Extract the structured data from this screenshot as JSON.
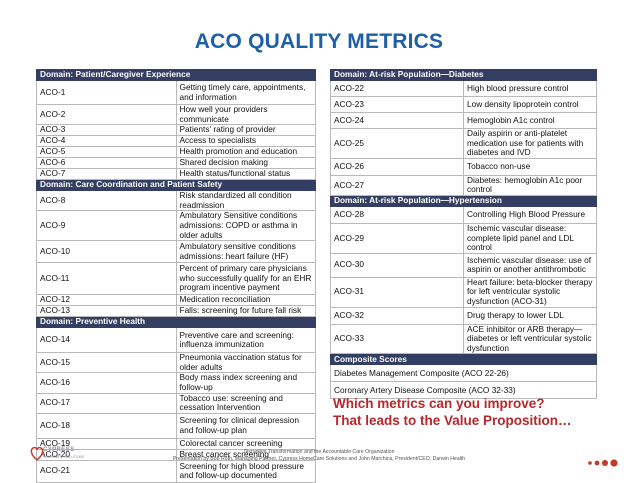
{
  "title": "ACO QUALITY METRICS",
  "left_rows": [
    {
      "type": "domain",
      "text": "Domain: Patient/Caregiver Experience"
    },
    {
      "type": "row",
      "id": "ACO-1",
      "text": "Getting timely care, appointments, and information",
      "h": 24
    },
    {
      "type": "row",
      "id": "ACO-2",
      "text": "How well your providers communicate",
      "h": 12
    },
    {
      "type": "row",
      "id": "ACO-3",
      "text": "Patients' rating of provider",
      "h": 11
    },
    {
      "type": "row",
      "id": "ACO-4",
      "text": "Access to specialists",
      "h": 11
    },
    {
      "type": "row",
      "id": "ACO-5",
      "text": "Health promotion and education",
      "h": 11
    },
    {
      "type": "row",
      "id": "ACO-6",
      "text": "Shared decision making",
      "h": 11
    },
    {
      "type": "row",
      "id": "ACO-7",
      "text": "Health status/functional status",
      "h": 11
    },
    {
      "type": "domain",
      "text": "Domain: Care Coordination and Patient Safety"
    },
    {
      "type": "row",
      "id": "ACO-8",
      "text": "Risk standardized all condition readmission",
      "h": 11
    },
    {
      "type": "row",
      "id": "ACO-9",
      "text": "Ambulatory Sensitive conditions admissions: COPD or asthma in older adults",
      "h": 22
    },
    {
      "type": "row",
      "id": "ACO-10",
      "text": "Ambulatory sensitive conditions admissions: heart failure (HF)",
      "h": 22
    },
    {
      "type": "row",
      "id": "ACO-11",
      "text": "Percent of primary care physicians who successfully qualify for an EHR program incentive payment",
      "h": 32
    },
    {
      "type": "row",
      "id": "ACO-12",
      "text": "Medication reconciliation",
      "h": 11
    },
    {
      "type": "row",
      "id": "ACO-13",
      "text": "Falls: screening for future fall risk",
      "h": 11
    },
    {
      "type": "domain",
      "text": "Domain: Preventive Health"
    },
    {
      "type": "row",
      "id": "ACO-14",
      "text": "Preventive care and screening: influenza immunization",
      "h": 25
    },
    {
      "type": "row",
      "id": "ACO-15",
      "text": "Pneumonia vaccination status for older adults",
      "h": 11
    },
    {
      "type": "row",
      "id": "ACO-16",
      "text": "Body mass index screening and follow-up",
      "h": 11
    },
    {
      "type": "row",
      "id": "ACO-17",
      "text": "Tobacco use: screening and cessation Intervention",
      "h": 11
    },
    {
      "type": "row",
      "id": "ACO-18",
      "text": "Screening for clinical depression and follow-up plan",
      "h": 25
    },
    {
      "type": "row",
      "id": "ACO-19",
      "text": "Colorectal cancer screening",
      "h": 11
    },
    {
      "type": "row",
      "id": "ACO-20",
      "text": "Breast cancer screening",
      "h": 11
    },
    {
      "type": "row",
      "id": "ACO-21",
      "text": "Screening for high blood pressure and follow-up documented",
      "h": 22
    }
  ],
  "right_rows": [
    {
      "type": "domain",
      "text": "Domain: At-risk Population—Diabetes"
    },
    {
      "type": "row",
      "id": "ACO-22",
      "text": "High blood pressure control",
      "h": 16
    },
    {
      "type": "row",
      "id": "ACO-23",
      "text": "Low density lipoprotein control",
      "h": 16
    },
    {
      "type": "row",
      "id": "ACO-24",
      "text": "Hemoglobin A1c control",
      "h": 16
    },
    {
      "type": "row",
      "id": "ACO-25",
      "text": "Daily aspirin or anti-platelet medication use for patients with diabetes and IVD",
      "h": 24
    },
    {
      "type": "row",
      "id": "ACO-26",
      "text": "Tobacco non-use",
      "h": 17
    },
    {
      "type": "row",
      "id": "ACO-27",
      "text": "Diabetes: hemoglobin A1c poor control",
      "h": 17
    },
    {
      "type": "domain",
      "text": "Domain: At-risk Population—Hypertension"
    },
    {
      "type": "row",
      "id": "ACO-28",
      "text": "Controlling High Blood Pressure",
      "h": 17
    },
    {
      "type": "row",
      "id": "ACO-29",
      "text": "Ischemic vascular disease: complete lipid panel and LDL control",
      "h": 24
    },
    {
      "type": "row",
      "id": "ACO-30",
      "text": "Ischemic vascular disease: use of aspirin or another antithrombotic",
      "h": 24
    },
    {
      "type": "row",
      "id": "ACO-31",
      "text": "Heart failure: beta-blocker therapy for left ventricular systolic dysfunction (ACO-31)",
      "h": 24
    },
    {
      "type": "row",
      "id": "ACO-32",
      "text": "Drug therapy to lower LDL",
      "h": 17
    },
    {
      "type": "row",
      "id": "ACO-33",
      "text": "ACE inhibitor or ARB therapy—diabetes or left ventricular systolic dysfunction",
      "h": 24
    },
    {
      "type": "domain",
      "text": "Composite Scores"
    },
    {
      "type": "full",
      "text": "Diabetes Management Composite (ACO 22-26)",
      "h": 17
    },
    {
      "type": "full",
      "text": "Coronary Artery Disease Composite (ACO 32-33)",
      "h": 17
    }
  ],
  "callout": [
    "Which metrics can you improve?",
    "That leads to the Value Proposition…"
  ],
  "footer": {
    "line1": "Disruptive Transformation and the Accountable Care Organization",
    "line2": "Presentation by Bob Roth, Managing Partner, Cypress HomeCare Solutions and John Marchica, President/CEO, Darwin Health"
  },
  "logo": {
    "name": "CYPRESS",
    "sub": "HOMECARE SOLUTIONS"
  },
  "colors": {
    "title": "#1f5fa8",
    "domain_bg": "#343e63",
    "callout": "#b5282d"
  }
}
